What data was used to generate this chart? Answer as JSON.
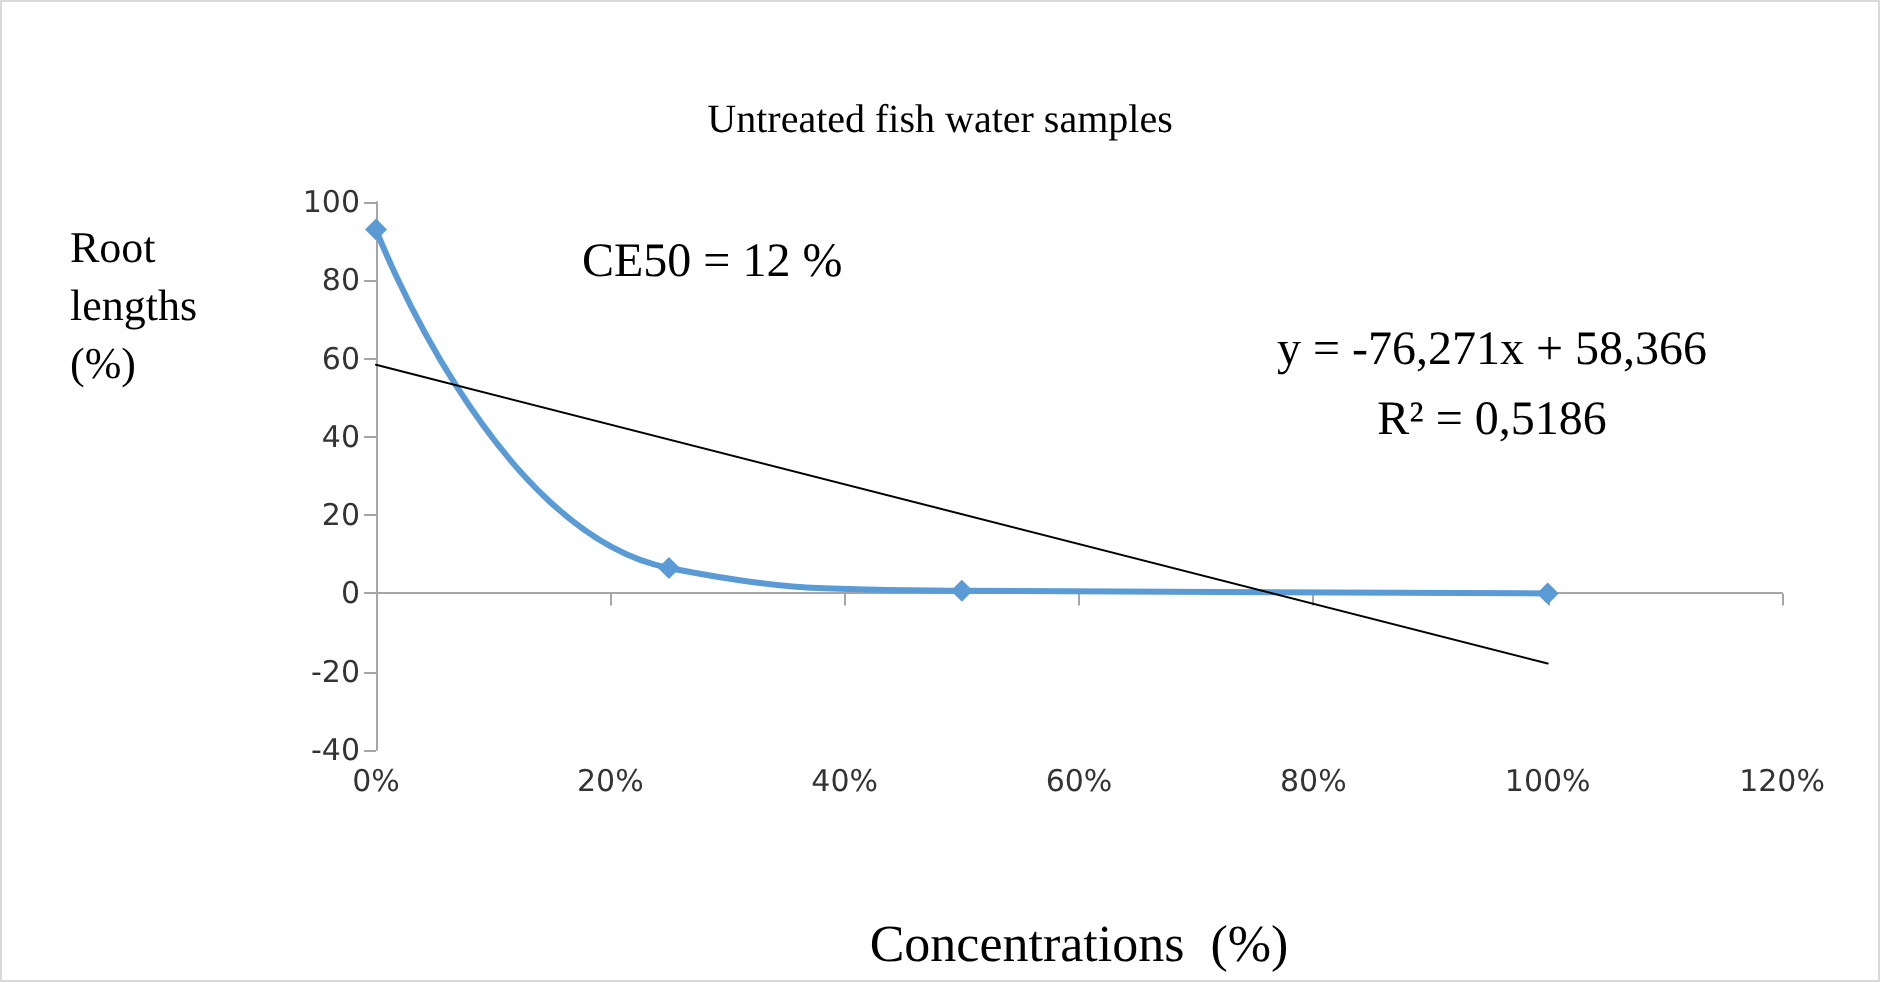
{
  "chart_data": {
    "type": "line",
    "title": "Untreated fish water samples",
    "xlabel": "Concentrations  (%)",
    "ylabel": "Root lengths (%)",
    "annotations": [
      "CE50 = 12 %",
      "y = -76,271x + 58,366",
      "R² = 0,5186"
    ],
    "x": [
      0,
      0.25,
      0.5,
      1.0
    ],
    "series": [
      {
        "color": "#5b9bd5",
        "values": [
          93,
          6.5,
          0.7,
          0
        ]
      },
      {
        "type": "line",
        "color": "#000000",
        "x": [
          0,
          1.0
        ],
        "values": [
          58.4,
          -17.9
        ],
        "marker": "none"
      }
    ],
    "xlim": [
      0,
      1.2
    ],
    "xticks": [
      {
        "value": 0,
        "label": "0%"
      },
      {
        "value": 0.2,
        "label": "20%"
      },
      {
        "value": 0.4,
        "label": "40%"
      },
      {
        "value": 0.6,
        "label": "60%"
      },
      {
        "value": 0.8,
        "label": "80%"
      },
      {
        "value": 1.0,
        "label": "100%"
      },
      {
        "value": 1.2,
        "label": "120%"
      }
    ],
    "ylim": [
      -40,
      100
    ],
    "yticks": [
      -40,
      -20,
      0,
      20,
      40,
      60,
      80,
      100
    ],
    "marker": "diamond"
  }
}
